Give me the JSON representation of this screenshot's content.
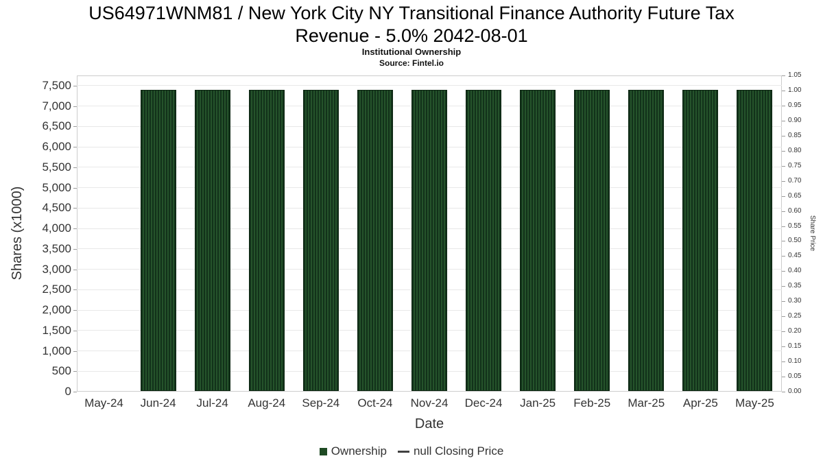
{
  "chart_data": {
    "type": "bar",
    "title": "US64971WNM81 / New York City NY Transitional Finance Authority Future Tax Revenue - 5.0% 2042-08-01",
    "title_lines": [
      "US64971WNM81 / New York City NY Transitional Finance Authority Future Tax",
      "Revenue - 5.0% 2042-08-01"
    ],
    "subtitle": "Institutional Ownership",
    "source": "Source: Fintel.io",
    "xlabel": "Date",
    "ylabel_left": "Shares (x1000)",
    "ylabel_right": "Share Price",
    "categories": [
      "May-24",
      "Jun-24",
      "Jul-24",
      "Aug-24",
      "Sep-24",
      "Oct-24",
      "Nov-24",
      "Dec-24",
      "Jan-25",
      "Feb-25",
      "Mar-25",
      "Apr-25",
      "May-25"
    ],
    "series": [
      {
        "name": "Ownership",
        "type": "bar",
        "color": "#1e4a23",
        "axis": "left",
        "values": [
          null,
          7400,
          7400,
          7400,
          7400,
          7400,
          7400,
          7400,
          7400,
          7400,
          7400,
          7400,
          7400
        ]
      },
      {
        "name": "null Closing Price",
        "type": "line",
        "color": "#404040",
        "axis": "right",
        "values": []
      }
    ],
    "ylim_left": [
      0,
      7750
    ],
    "ylim_right": [
      0,
      1.05
    ],
    "left_ticks": {
      "values": [
        0,
        500,
        1000,
        1500,
        2000,
        2500,
        3000,
        3500,
        4000,
        4500,
        5000,
        5500,
        6000,
        6500,
        7000,
        7500
      ],
      "labels": [
        "0",
        "500",
        "1,000",
        "1,500",
        "2,000",
        "2,500",
        "3,000",
        "3,500",
        "4,000",
        "4,500",
        "5,000",
        "5,500",
        "6,000",
        "6,500",
        "7,000",
        "7,500"
      ]
    },
    "right_ticks": {
      "values": [
        0,
        0.05,
        0.1,
        0.15,
        0.2,
        0.25,
        0.3,
        0.35,
        0.4,
        0.45,
        0.5,
        0.55,
        0.6,
        0.65,
        0.7,
        0.75,
        0.8,
        0.85,
        0.9,
        0.95,
        1.0,
        1.05
      ],
      "labels": [
        "0.00",
        "0.05",
        "0.10",
        "0.15",
        "0.20",
        "0.25",
        "0.30",
        "0.35",
        "0.40",
        "0.45",
        "0.50",
        "0.55",
        "0.60",
        "0.65",
        "0.70",
        "0.75",
        "0.80",
        "0.85",
        "0.90",
        "0.95",
        "1.00",
        "1.05"
      ]
    },
    "grid": "horizontal",
    "legend_position": "bottom"
  },
  "legend": {
    "items": [
      {
        "label": "Ownership",
        "marker": "square",
        "color": "#1e4a23"
      },
      {
        "label": "null Closing Price",
        "marker": "dash",
        "color": "#404040"
      }
    ]
  }
}
